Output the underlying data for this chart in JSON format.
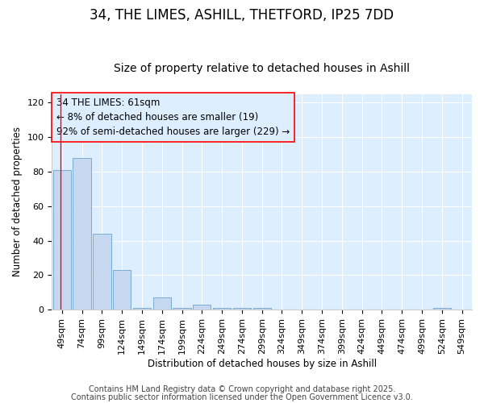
{
  "title1": "34, THE LIMES, ASHILL, THETFORD, IP25 7DD",
  "title2": "Size of property relative to detached houses in Ashill",
  "xlabel": "Distribution of detached houses by size in Ashill",
  "ylabel": "Number of detached properties",
  "bar_color": "#c5d8f0",
  "bar_edge_color": "#7aadd4",
  "plot_bg_color": "#ddeeff",
  "fig_bg_color": "#ffffff",
  "categories": [
    "49sqm",
    "74sqm",
    "99sqm",
    "124sqm",
    "149sqm",
    "174sqm",
    "199sqm",
    "224sqm",
    "249sqm",
    "274sqm",
    "299sqm",
    "324sqm",
    "349sqm",
    "374sqm",
    "399sqm",
    "424sqm",
    "449sqm",
    "474sqm",
    "499sqm",
    "524sqm",
    "549sqm"
  ],
  "values": [
    81,
    88,
    44,
    23,
    1,
    7,
    1,
    3,
    1,
    1,
    1,
    0,
    0,
    0,
    0,
    0,
    0,
    0,
    0,
    1,
    0
  ],
  "ylim": [
    0,
    125
  ],
  "yticks": [
    0,
    20,
    40,
    60,
    80,
    100,
    120
  ],
  "red_line_x": -0.07,
  "annotation_title": "34 THE LIMES: 61sqm",
  "annotation_line1": "← 8% of detached houses are smaller (19)",
  "annotation_line2": "92% of semi-detached houses are larger (229) →",
  "footer1": "Contains HM Land Registry data © Crown copyright and database right 2025.",
  "footer2": "Contains public sector information licensed under the Open Government Licence v3.0.",
  "grid_color": "#ffffff",
  "title_fontsize": 12,
  "subtitle_fontsize": 10,
  "annotation_fontsize": 8.5,
  "axis_fontsize": 8,
  "footer_fontsize": 7
}
